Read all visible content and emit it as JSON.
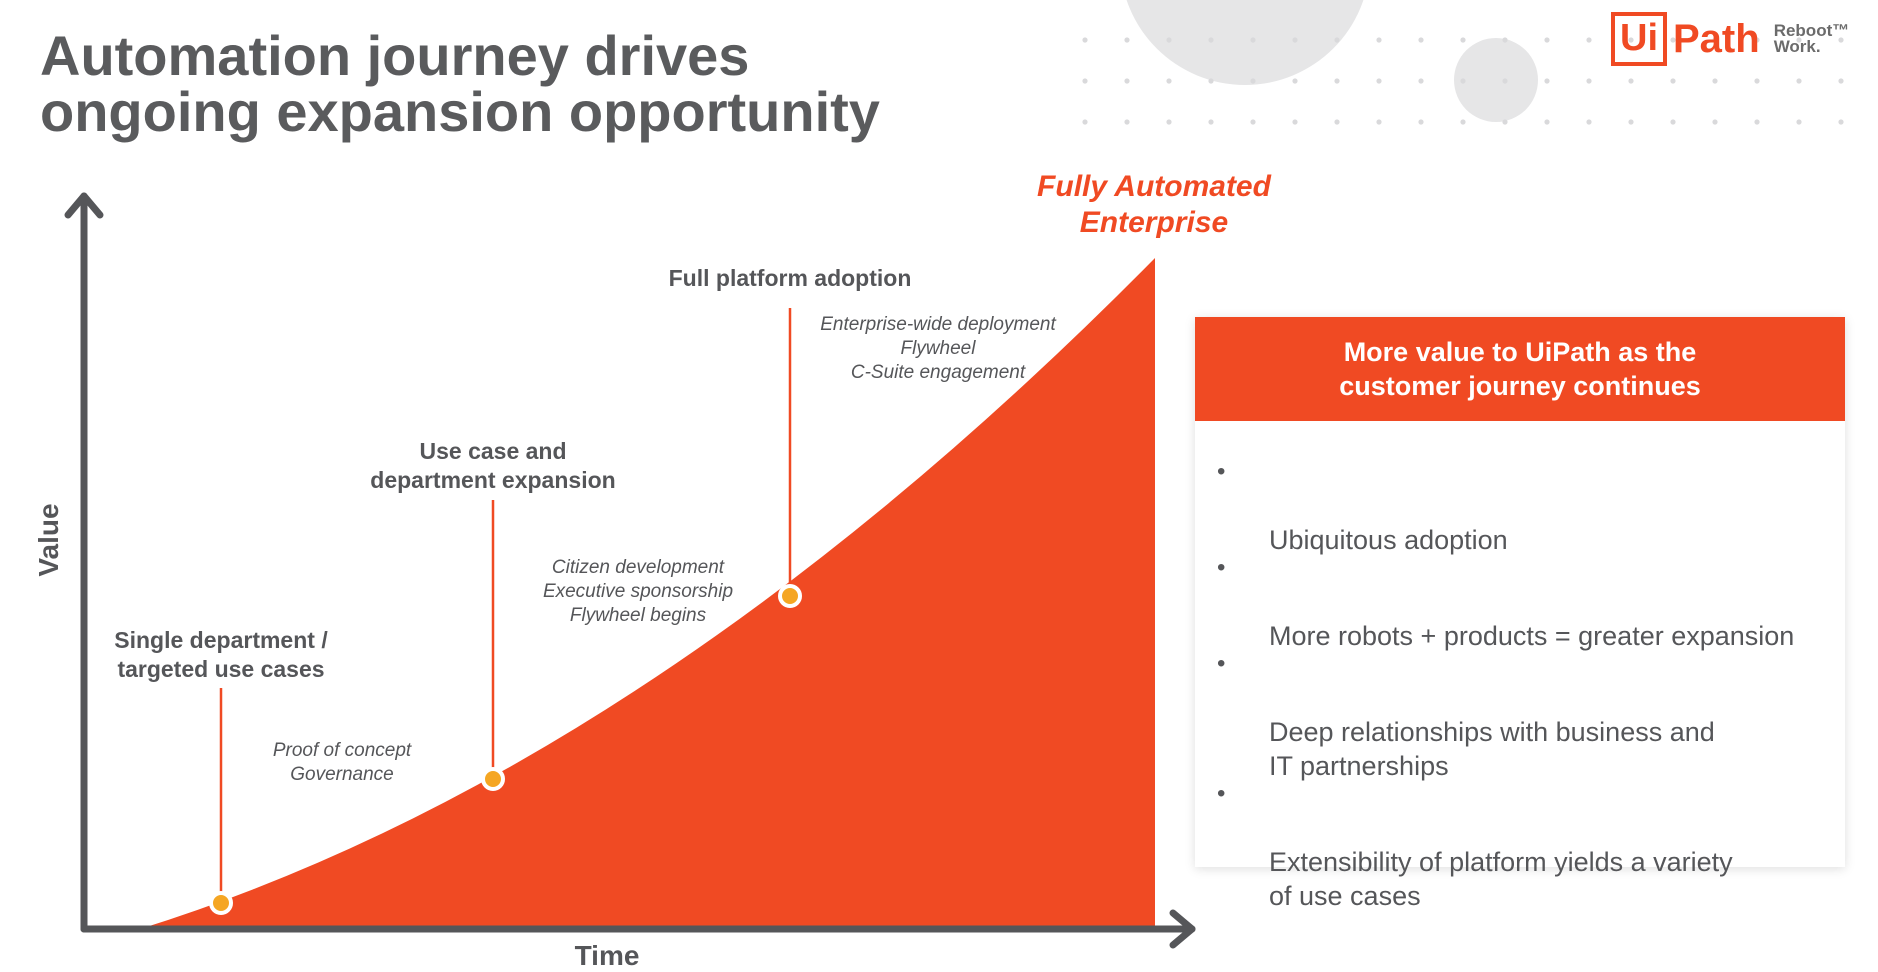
{
  "title": {
    "line1": "Automation journey drives",
    "line2": "ongoing expansion opportunity"
  },
  "logo": {
    "ui": "Ui",
    "path": "Path",
    "tagline": "Reboot™\nWork."
  },
  "chart": {
    "y_label": "Value",
    "x_label": "Time",
    "peak_label_line1": "Fully Automated",
    "peak_label_line2": "Enterprise",
    "stages": [
      {
        "title_lines": [
          "Single department /",
          "targeted use cases"
        ],
        "notes": [
          "Proof of concept",
          "Governance"
        ]
      },
      {
        "title_lines": [
          "Use case and",
          "department expansion"
        ],
        "notes": [
          "Citizen development",
          "Executive sponsorship",
          "Flywheel begins"
        ]
      },
      {
        "title_lines": [
          "Full platform adoption"
        ],
        "notes": [
          "Enterprise-wide deployment",
          "Flywheel",
          "C-Suite engagement"
        ]
      }
    ]
  },
  "panel": {
    "header": "More value to UiPath as the\ncustomer journey continues",
    "items": [
      "Ubiquitous adoption",
      "More robots + products = greater expansion",
      "Deep relationships with business and\nIT partnerships",
      "Extensibility of platform yields a variety\nof use cases"
    ]
  },
  "colors": {
    "accent": "#f04a23",
    "marker": "#f5a623",
    "axis": "#555659",
    "text": "#555659"
  }
}
